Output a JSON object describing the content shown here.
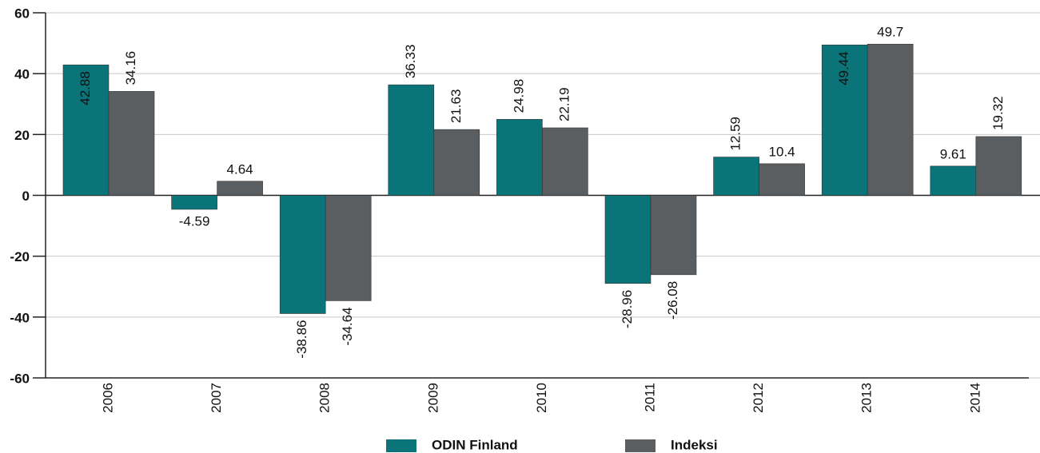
{
  "chart_data": {
    "type": "bar",
    "categories": [
      "2006",
      "2007",
      "2008",
      "2009",
      "2010",
      "2011",
      "2012",
      "2013",
      "2014"
    ],
    "series": [
      {
        "name": "ODIN Finland",
        "color": "#0a7479",
        "values": [
          42.88,
          -4.59,
          -38.86,
          36.33,
          24.98,
          -28.96,
          12.59,
          49.44,
          9.61
        ]
      },
      {
        "name": "Indeksi",
        "color": "#5b5e61",
        "values": [
          34.16,
          4.64,
          -34.64,
          21.63,
          22.19,
          -26.08,
          10.4,
          49.7,
          19.32
        ]
      }
    ],
    "ylim": [
      -60,
      60
    ],
    "yticks": [
      -60,
      -40,
      -20,
      0,
      20,
      40,
      60
    ],
    "grid": true,
    "legend": "bottom"
  }
}
